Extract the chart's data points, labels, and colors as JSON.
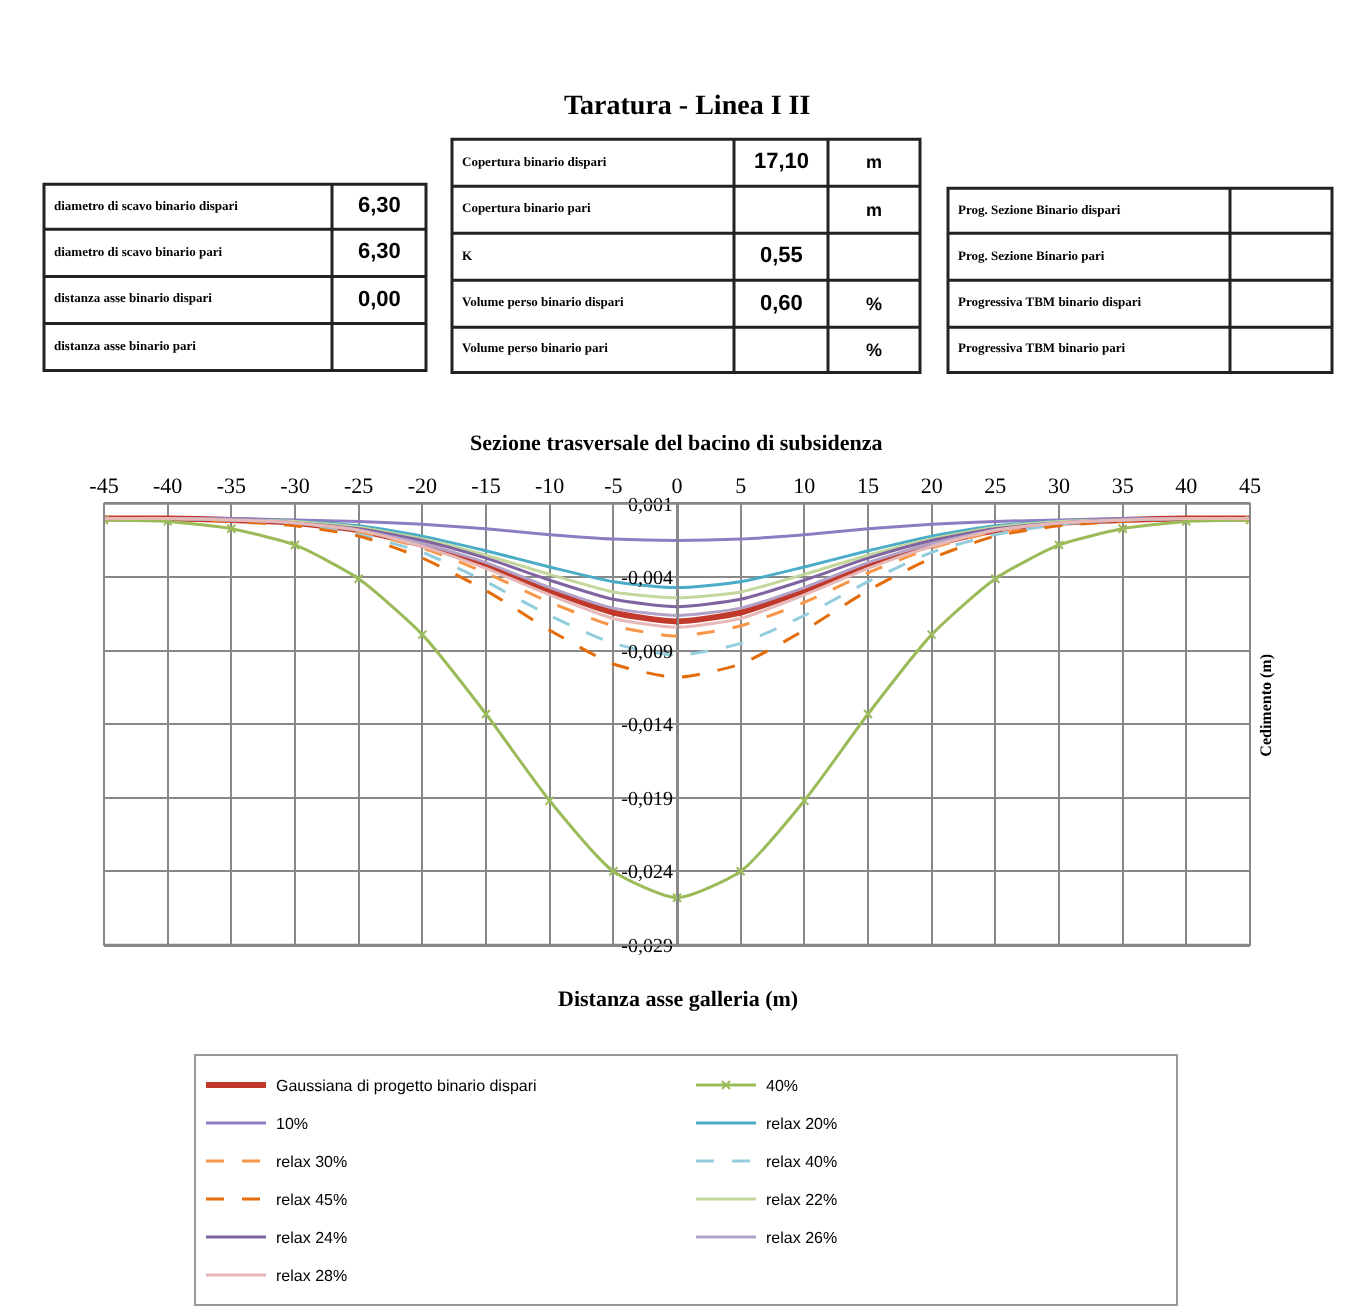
{
  "chart_data": [
    {
      "type": "other",
      "title": "Taratura - Linea I II",
      "annotations": [
        "diametro di scavo binario dispari",
        "6,30",
        "diametro di scavo binario pari",
        "6,30",
        "distanza asse binario dispari",
        "0,00",
        "distanza asse binario pari",
        "Copertura binario dispari",
        "17,10",
        "m",
        "Copertura binario pari",
        "m",
        "K",
        "0,55",
        "Volume perso binario dispari",
        "0,60",
        "%",
        "Volume perso binario pari",
        "%",
        "Prog. Sezione Binario dispari",
        "Prog. Sezione Binario pari",
        "Progressiva TBM binario dispari",
        "Progressiva TBM binario pari"
      ]
    },
    {
      "type": "line",
      "title": "Sezione trasversale del bacino di subsidenza",
      "xlabel": "Distanza asse galleria (m)",
      "ylabel": "Cedimento (m)",
      "x": [
        -45,
        -40,
        -35,
        -30,
        -25,
        -20,
        -15,
        -10,
        -5,
        0,
        5,
        10,
        15,
        20,
        25,
        30,
        35,
        40,
        45
      ],
      "xlim": [
        -45,
        45
      ],
      "xticks": [
        -45,
        -40,
        -35,
        -30,
        -25,
        -20,
        -15,
        -10,
        -5,
        0,
        5,
        10,
        15,
        20,
        25,
        30,
        35,
        40,
        45
      ],
      "ylim": [
        -0.029,
        0.001
      ],
      "yticks": [
        {
          "value": 0.001,
          "label": "0,001"
        },
        {
          "value": -0.004,
          "label": "-0,004"
        },
        {
          "value": -0.009,
          "label": "-0,009"
        },
        {
          "value": -0.014,
          "label": "-0,014"
        },
        {
          "value": -0.019,
          "label": "-0,019"
        },
        {
          "value": -0.024,
          "label": "-0,024"
        },
        {
          "value": -0.029,
          "label": "-0,029"
        }
      ],
      "grid": true,
      "legend": "bottom",
      "marker": "none",
      "line_style": "solid",
      "series": [
        {
          "name": "Gaussiana di progetto binario dispari",
          "color": "#c0392b",
          "values": [
            0,
            0,
            -0.0001,
            -0.0003,
            -0.0008,
            -0.0018,
            -0.0032,
            -0.0049,
            -0.0064,
            -0.007,
            -0.0064,
            -0.0049,
            -0.0032,
            -0.0018,
            -0.0008,
            -0.0003,
            -0.0001,
            0,
            0
          ]
        },
        {
          "name": "40%",
          "color": "#9bbb59",
          "marker": "cross",
          "values": [
            -0.0001,
            -0.0002,
            -0.0007,
            -0.0018,
            -0.0041,
            -0.0079,
            -0.0133,
            -0.0192,
            -0.024,
            -0.0258,
            -0.024,
            -0.0192,
            -0.0133,
            -0.0079,
            -0.0041,
            -0.0018,
            -0.0007,
            -0.0002,
            -0.0001
          ]
        },
        {
          "name": "10%",
          "color": "#8e7cc3",
          "values": [
            0,
            0,
            0,
            -0.0001,
            -0.0002,
            -0.0004,
            -0.0007,
            -0.0011,
            -0.0014,
            -0.0015,
            -0.0014,
            -0.0011,
            -0.0007,
            -0.0004,
            -0.0002,
            -0.0001,
            0,
            0,
            0
          ]
        },
        {
          "name": "relax 20%",
          "color": "#4aacc6",
          "values": [
            null,
            null,
            -0.0001,
            -0.0002,
            -0.0005,
            -0.0012,
            -0.0022,
            -0.0033,
            -0.0043,
            -0.0047,
            -0.0043,
            -0.0033,
            -0.0022,
            -0.0012,
            -0.0005,
            -0.0002,
            -0.0001,
            null,
            null
          ]
        },
        {
          "name": "relax 30%",
          "color": "#f79646",
          "line_style": "dashed",
          "values": [
            0,
            0,
            -0.0001,
            -0.0004,
            -0.0009,
            -0.002,
            -0.0037,
            -0.0057,
            -0.0073,
            -0.008,
            -0.0073,
            -0.0057,
            -0.0037,
            -0.002,
            -0.0009,
            -0.0004,
            -0.0001,
            0,
            0
          ]
        },
        {
          "name": "relax 40%",
          "color": "#93cddd",
          "line_style": "dashed",
          "values": [
            0,
            0,
            -0.0001,
            -0.0004,
            -0.0011,
            -0.0023,
            -0.0043,
            -0.0066,
            -0.0085,
            -0.0093,
            -0.0085,
            -0.0066,
            -0.0043,
            -0.0023,
            -0.0011,
            -0.0004,
            -0.0001,
            0,
            0
          ]
        },
        {
          "name": "relax 45%",
          "color": "#e46c0a",
          "line_style": "dashed",
          "values": [
            0,
            0,
            -0.0002,
            -0.0005,
            -0.0012,
            -0.0027,
            -0.0049,
            -0.0076,
            -0.0099,
            -0.0108,
            -0.0099,
            -0.0076,
            -0.0049,
            -0.0027,
            -0.0012,
            -0.0005,
            -0.0002,
            0,
            0
          ]
        },
        {
          "name": "relax 22%",
          "color": "#c3d69b",
          "values": [
            0,
            0,
            -0.0001,
            -0.0002,
            -0.0006,
            -0.0014,
            -0.0025,
            -0.0038,
            -0.005,
            -0.0054,
            -0.005,
            -0.0038,
            -0.0025,
            -0.0014,
            -0.0006,
            -0.0002,
            -0.0001,
            0,
            0
          ]
        },
        {
          "name": "relax 24%",
          "color": "#8064a2",
          "values": [
            0,
            0,
            -0.0001,
            -0.0003,
            -0.0007,
            -0.0015,
            -0.0027,
            -0.0042,
            -0.0055,
            -0.006,
            -0.0055,
            -0.0042,
            -0.0027,
            -0.0015,
            -0.0007,
            -0.0003,
            -0.0001,
            0,
            0
          ]
        },
        {
          "name": "relax 26%",
          "color": "#b3a2c7",
          "values": [
            0,
            0,
            -0.0001,
            -0.0003,
            -0.0008,
            -0.0017,
            -0.003,
            -0.0047,
            -0.0061,
            -0.0066,
            -0.0061,
            -0.0047,
            -0.003,
            -0.0017,
            -0.0008,
            -0.0003,
            -0.0001,
            0,
            0
          ]
        },
        {
          "name": "relax 28%",
          "color": "#e6b9b8",
          "values": [
            0,
            0,
            -0.0001,
            -0.0003,
            -0.0008,
            -0.0019,
            -0.0034,
            -0.0052,
            -0.0068,
            -0.0074,
            -0.0068,
            -0.0052,
            -0.0034,
            -0.0019,
            -0.0008,
            -0.0003,
            -0.0001,
            0,
            0
          ]
        }
      ]
    }
  ]
}
